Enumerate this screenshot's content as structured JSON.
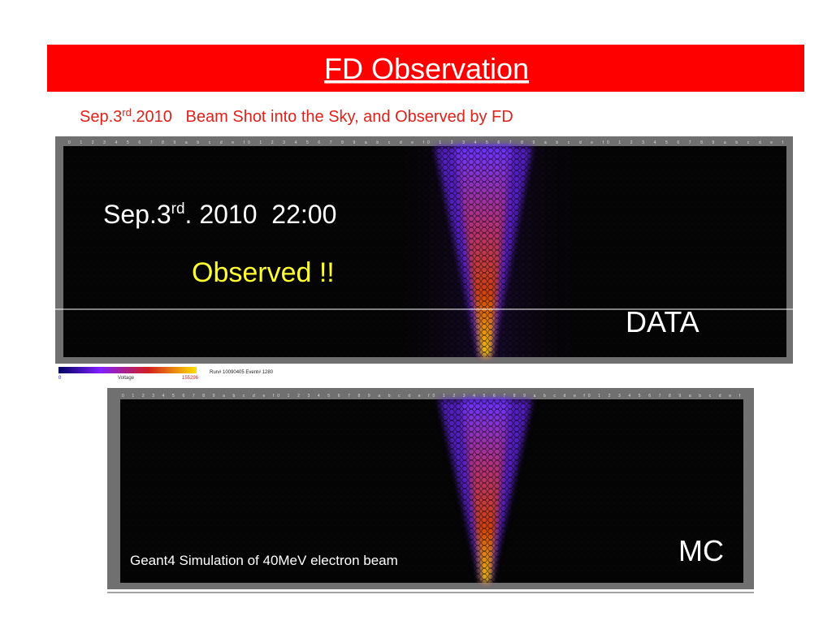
{
  "header": {
    "title": "FD Observation"
  },
  "subtitle": {
    "parts": [
      "Sep.3",
      "rd",
      ".2010   Beam Shot into the Sky, and Observed by FD"
    ]
  },
  "data_panel": {
    "column_labels": "0 1 2 3 4 5 6 7 8 9 a b c d e f",
    "date_parts": [
      "Sep.3",
      "rd",
      ". 2010  22:00"
    ],
    "observed": "Observed !!",
    "label": "DATA",
    "colorbar": {
      "min": 0,
      "name": "Voltage",
      "max": 155296
    },
    "run_info": "Run# 10090405 Event# 1280"
  },
  "mc_panel": {
    "column_labels": "0 1 2 3 4 5 6 7 8 9 a b c d e f",
    "caption": "Geant4 Simulation of 40MeV electron beam",
    "label": "MC"
  }
}
